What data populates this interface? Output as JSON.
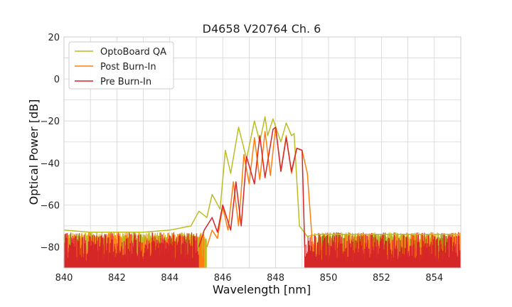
{
  "chart_data": {
    "type": "line",
    "title": "D4658 V20764 Ch. 6",
    "xlabel": "Wavelength [nm]",
    "ylabel": "Optical Power [dB]",
    "xlim": [
      840,
      855
    ],
    "ylim": [
      -90,
      20
    ],
    "xticks": [
      840,
      842,
      844,
      846,
      848,
      850,
      852,
      854
    ],
    "yticks": [
      20,
      0,
      -20,
      -40,
      -60,
      -80
    ],
    "grid": true,
    "legend_position": "top-left",
    "noise_floor": -80,
    "series": [
      {
        "name": "OptoBoard QA",
        "color": "#bcbd22",
        "x": [
          840,
          841,
          842,
          843,
          844,
          844.8,
          845.1,
          845.4,
          845.6,
          845.9,
          846.1,
          846.3,
          846.6,
          846.9,
          847.2,
          847.4,
          847.6,
          847.7,
          847.9,
          848.2,
          848.4,
          848.6,
          848.7,
          848.9,
          849.2,
          849.6,
          850,
          852,
          855
        ],
        "y": [
          -72,
          -73,
          -73,
          -73,
          -72,
          -70,
          -63,
          -66,
          -55,
          -62,
          -34,
          -45,
          -23,
          -38,
          -20,
          -30,
          -18,
          -27,
          -19,
          -30,
          -21,
          -27,
          -26,
          -70,
          -75,
          -74,
          -74,
          -74,
          -74
        ]
      },
      {
        "name": "Post Burn-In",
        "color": "#ff7f0e",
        "x": [
          845.4,
          845.6,
          845.8,
          846.0,
          846.2,
          846.4,
          846.6,
          846.8,
          847.0,
          847.2,
          847.4,
          847.6,
          847.8,
          848.0,
          848.2,
          848.4,
          848.6,
          848.8,
          849.0,
          849.2,
          849.4
        ],
        "y": [
          -80,
          -72,
          -76,
          -61,
          -72,
          -49,
          -70,
          -36,
          -50,
          -28,
          -48,
          -25,
          -46,
          -23,
          -44,
          -27,
          -45,
          -33,
          -34,
          -45,
          -80
        ]
      },
      {
        "name": "Pre Burn-In",
        "color": "#d62728",
        "x": [
          845.1,
          845.3,
          845.6,
          845.8,
          846.0,
          846.3,
          846.5,
          846.7,
          846.9,
          847.2,
          847.4,
          847.6,
          847.9,
          848.0,
          848.2,
          848.4,
          848.6,
          848.8,
          849.0,
          849.1
        ],
        "y": [
          -80,
          -72,
          -66,
          -73,
          -60,
          -72,
          -49,
          -70,
          -37,
          -50,
          -27,
          -47,
          -24,
          -23,
          -44,
          -28,
          -44,
          -33,
          -34,
          -80
        ]
      }
    ]
  }
}
